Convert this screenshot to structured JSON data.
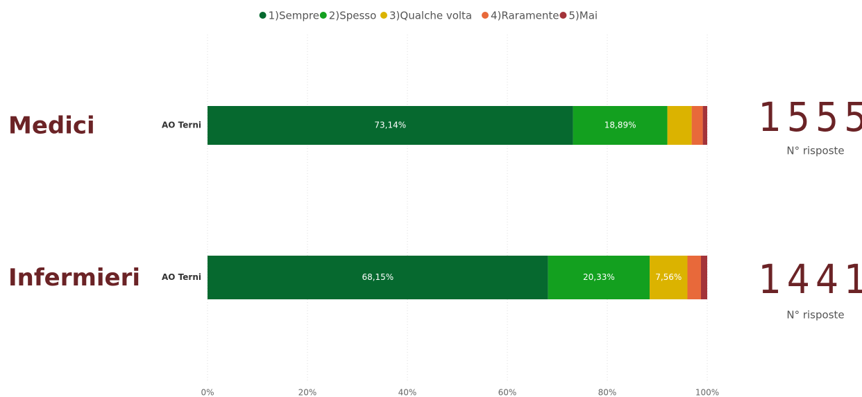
{
  "chart_data": [
    {
      "type": "stacked_bar_h",
      "title": "Medici",
      "categories": [
        "AO Terni"
      ],
      "series": [
        {
          "name": "1)Sempre",
          "color": "#06692f",
          "values": [
            73.14
          ],
          "value_labels": [
            "73,14%"
          ]
        },
        {
          "name": "2)Spesso",
          "color": "#13a01f",
          "values": [
            18.89
          ],
          "value_labels": [
            "18,89%"
          ]
        },
        {
          "name": "3)Qualche volta",
          "color": "#dbb300",
          "values": [
            4.86
          ],
          "value_labels": [
            null
          ]
        },
        {
          "name": "4)Raramente",
          "color": "#e8693a",
          "values": [
            2.22
          ],
          "value_labels": [
            null
          ]
        },
        {
          "name": "5)Mai",
          "color": "#a3343a",
          "values": [
            0.89
          ],
          "value_labels": [
            null
          ]
        }
      ],
      "xlim": [
        0,
        100
      ],
      "xticks": [
        {
          "value": 0,
          "label": "0%"
        },
        {
          "value": 20,
          "label": "20%"
        },
        {
          "value": 40,
          "label": "40%"
        },
        {
          "value": 60,
          "label": "60%"
        },
        {
          "value": 80,
          "label": "80%"
        },
        {
          "value": 100,
          "label": "100%"
        }
      ],
      "grid": true,
      "legend": "top",
      "total": 1555,
      "total_label": "N° risposte"
    },
    {
      "type": "stacked_bar_h",
      "title": "Infermieri",
      "categories": [
        "AO Terni"
      ],
      "series": [
        {
          "name": "1)Sempre",
          "color": "#06692f",
          "values": [
            68.15
          ],
          "value_labels": [
            "68,15%"
          ]
        },
        {
          "name": "2)Spesso",
          "color": "#13a01f",
          "values": [
            20.33
          ],
          "value_labels": [
            "20,33%"
          ]
        },
        {
          "name": "3)Qualche volta",
          "color": "#dbb300",
          "values": [
            7.56
          ],
          "value_labels": [
            "7,56%"
          ]
        },
        {
          "name": "4)Raramente",
          "color": "#e8693a",
          "values": [
            2.71
          ],
          "value_labels": [
            null
          ]
        },
        {
          "name": "5)Mai",
          "color": "#a3343a",
          "values": [
            1.25
          ],
          "value_labels": [
            null
          ]
        }
      ],
      "xlim": [
        0,
        100
      ],
      "xticks": [
        {
          "value": 0,
          "label": "0%"
        },
        {
          "value": 20,
          "label": "20%"
        },
        {
          "value": 40,
          "label": "40%"
        },
        {
          "value": 60,
          "label": "60%"
        },
        {
          "value": 80,
          "label": "80%"
        },
        {
          "value": 100,
          "label": "100%"
        }
      ],
      "grid": true,
      "total": 1441,
      "total_label": "N° risposte"
    }
  ]
}
